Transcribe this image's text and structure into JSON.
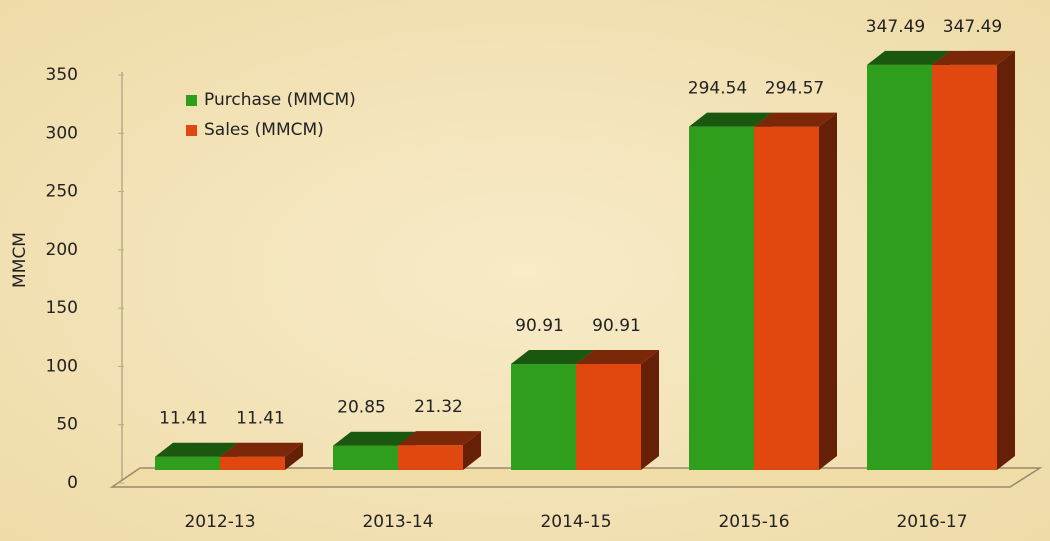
{
  "chart_data": {
    "type": "bar3d",
    "y_label": "MMCM",
    "categories": [
      "2012-13",
      "2013-14",
      "2014-15",
      "2015-16",
      "2016-17"
    ],
    "series": [
      {
        "name": "Purchase (MMCM)",
        "color": "#2f9e1c",
        "values": [
          11.41,
          20.85,
          90.91,
          294.54,
          347.49
        ]
      },
      {
        "name": "Sales (MMCM)",
        "color": "#e0480f",
        "values": [
          11.41,
          21.32,
          90.91,
          294.57,
          347.49
        ]
      }
    ],
    "ylim": [
      0,
      350
    ],
    "yticks": [
      0,
      50,
      100,
      150,
      200,
      250,
      300,
      350
    ],
    "legend": "upper left"
  }
}
